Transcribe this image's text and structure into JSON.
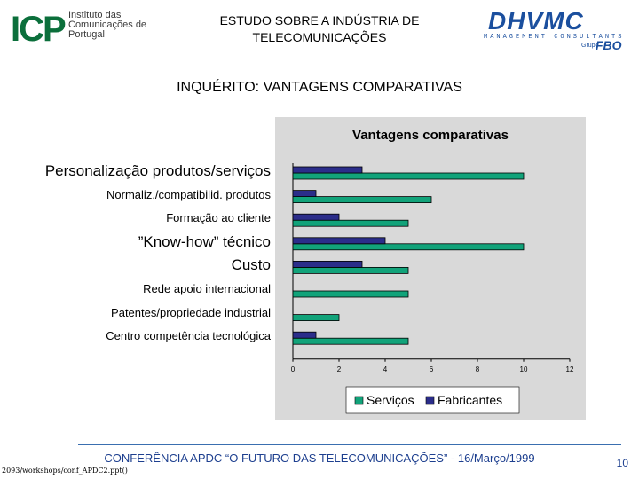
{
  "header": {
    "logo_left_mark": "ICP",
    "logo_left_text": "Instituto das Comunicações de Portugal",
    "title_line1": "ESTUDO SOBRE A INDÚSTRIA DE",
    "title_line2": "TELECOMUNICAÇÕES",
    "logo_right_brand": "DHVMC",
    "logo_right_tagline": "MANAGEMENT CONSULTANTS",
    "logo_right_group": "Grupo",
    "logo_right_group_name": "FBO"
  },
  "page_title": "INQUÉRITO: VANTAGENS COMPARATIVAS",
  "colors": {
    "servicos": "#12a37a",
    "fabricantes": "#2b2d8a",
    "panel": "#d9d9d9",
    "footer_text": "#1d3f8f"
  },
  "chart_data": {
    "type": "bar",
    "orientation": "horizontal",
    "title": "Vantagens comparativas",
    "categories": [
      "Personalização produtos/serviços",
      "Normaliz./compatibilid. produtos",
      "Formação ao cliente",
      "”Know-how” técnico",
      "Custo",
      "Rede apoio internacional",
      "Patentes/propriedade industrial",
      "Centro competência tecnológica"
    ],
    "series": [
      {
        "name": "Serviços",
        "values": [
          10,
          6,
          5,
          10,
          5,
          5,
          2,
          5
        ]
      },
      {
        "name": "Fabricantes",
        "values": [
          3,
          1,
          2,
          4,
          3,
          null,
          null,
          1
        ]
      }
    ],
    "xlim": [
      0,
      12
    ],
    "xticks": [
      "0",
      "2",
      "4",
      "6",
      "8",
      "10",
      "12"
    ],
    "grid": false,
    "legend": "bottom"
  },
  "footer": {
    "conference": "CONFERÊNCIA APDC “O FUTURO DAS TELECOMUNICAÇÕES” - 16/Março/1999",
    "path": "2093/workshops/conf_APDC2.ppt()",
    "page_number": "10"
  }
}
